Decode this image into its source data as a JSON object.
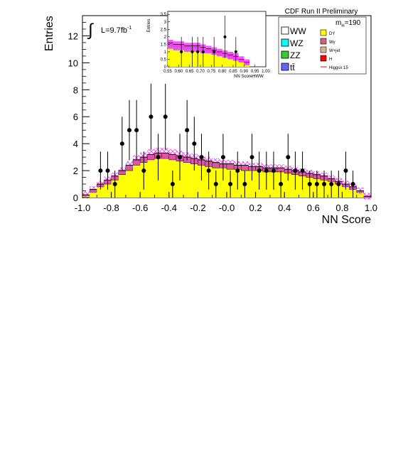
{
  "chart_data": {
    "type": "bar",
    "title": "CDF Run II Preliminary",
    "xlabel": "NN Score",
    "ylabel": "Entries",
    "xlim": [
      -1.0,
      1.0
    ],
    "ylim": [
      0,
      13.5
    ],
    "x_ticks": [
      "-1.0",
      "-0.8",
      "-0.6",
      "-0.4",
      "-0.2",
      "-0.0",
      "0.2",
      "0.4",
      "0.6",
      "0.8",
      "1.0"
    ],
    "y_ticks": [
      "0",
      "2",
      "4",
      "6",
      "8",
      "10",
      "12"
    ],
    "luminosity_label": "L=9.7fb",
    "luminosity_exponent": "-1",
    "mass_label": "m",
    "mass_subscript": "H",
    "mass_value": "=190",
    "legend": {
      "left": [
        {
          "label": "WW",
          "color": "#ffffff"
        },
        {
          "label": "WZ",
          "color": "#00ffff"
        },
        {
          "label": "ZZ",
          "color": "#33cc33"
        },
        {
          "label": "tt̄",
          "color": "#6666ff"
        }
      ],
      "right": [
        {
          "label": "DY",
          "color": "#ffff00"
        },
        {
          "label": "Wγ",
          "color": "#cc6677"
        },
        {
          "label": "W+jet",
          "color": "#d9b38c"
        },
        {
          "label": "H",
          "color": "#ff0000"
        },
        {
          "label": "Higgsx 15",
          "color": "#ff0000"
        }
      ]
    },
    "bin_edges_start": -1.0,
    "bin_width": 0.05,
    "background_total": [
      0.2,
      0.6,
      1.0,
      1.3,
      1.6,
      2.0,
      2.4,
      2.8,
      3.0,
      3.2,
      3.3,
      3.3,
      3.2,
      3.1,
      3.0,
      2.9,
      2.8,
      2.7,
      2.6,
      2.5,
      2.5,
      2.4,
      2.4,
      2.3,
      2.3,
      2.2,
      2.2,
      2.2,
      2.1,
      2.0,
      1.9,
      1.8,
      1.7,
      1.6,
      1.4,
      1.2,
      1.0,
      0.8,
      0.5,
      0.1
    ],
    "dy_component": [
      0.15,
      0.4,
      0.8,
      1.0,
      1.3,
      1.7,
      2.0,
      2.4,
      2.6,
      2.8,
      2.9,
      2.9,
      2.8,
      2.7,
      2.6,
      2.5,
      2.4,
      2.3,
      2.2,
      2.2,
      2.1,
      2.1,
      2.0,
      2.0,
      2.0,
      1.9,
      1.9,
      1.9,
      1.8,
      1.7,
      1.6,
      1.5,
      1.4,
      1.3,
      1.2,
      1.0,
      0.8,
      0.6,
      0.4,
      0.05
    ],
    "data_points": {
      "x": [
        -0.875,
        -0.825,
        -0.775,
        -0.725,
        -0.675,
        -0.625,
        -0.575,
        -0.525,
        -0.475,
        -0.425,
        -0.375,
        -0.325,
        -0.275,
        -0.225,
        -0.175,
        -0.125,
        -0.075,
        -0.025,
        0.025,
        0.075,
        0.125,
        0.175,
        0.225,
        0.275,
        0.325,
        0.375,
        0.425,
        0.475,
        0.525,
        0.575,
        0.625,
        0.675,
        0.725,
        0.775,
        0.825,
        0.875
      ],
      "y": [
        2,
        2,
        1,
        4,
        5,
        5,
        2,
        6,
        3,
        6,
        1,
        3,
        5,
        4,
        3,
        2,
        1,
        3,
        1,
        2,
        1,
        3,
        2,
        2,
        2,
        1,
        3,
        2,
        2,
        1,
        1,
        1,
        1,
        1,
        2,
        1
      ]
    },
    "inset": {
      "xlabel": "NN ScoreHWW",
      "ylabel": "Entries",
      "xlim": [
        0.55,
        1.0
      ],
      "ylim": [
        0,
        3.7
      ],
      "x_ticks": [
        "0.55",
        "0.60",
        "0.65",
        "0.70",
        "0.75",
        "0.80",
        "0.85",
        "0.90",
        "0.95",
        "1.00"
      ],
      "y_ticks": [
        "0",
        "0.5",
        "1",
        "1.5",
        "2",
        "2.5",
        "3",
        "3.5"
      ],
      "bin_width": 0.025,
      "background_total": [
        1.6,
        1.5,
        1.5,
        1.4,
        1.4,
        1.4,
        1.3,
        1.2,
        1.1,
        1.0,
        0.9,
        0.8,
        0.7,
        0.5,
        0.3
      ],
      "dy_component": [
        1.2,
        1.1,
        1.1,
        1.0,
        1.0,
        1.0,
        0.9,
        0.9,
        0.8,
        0.7,
        0.6,
        0.5,
        0.4,
        0.3,
        0.2
      ],
      "data_points": {
        "x": [
          0.6125,
          0.6625,
          0.6875,
          0.7125,
          0.7625,
          0.8125,
          0.8625
        ],
        "y": [
          1,
          1,
          1,
          1,
          1,
          2,
          1
        ]
      }
    }
  }
}
